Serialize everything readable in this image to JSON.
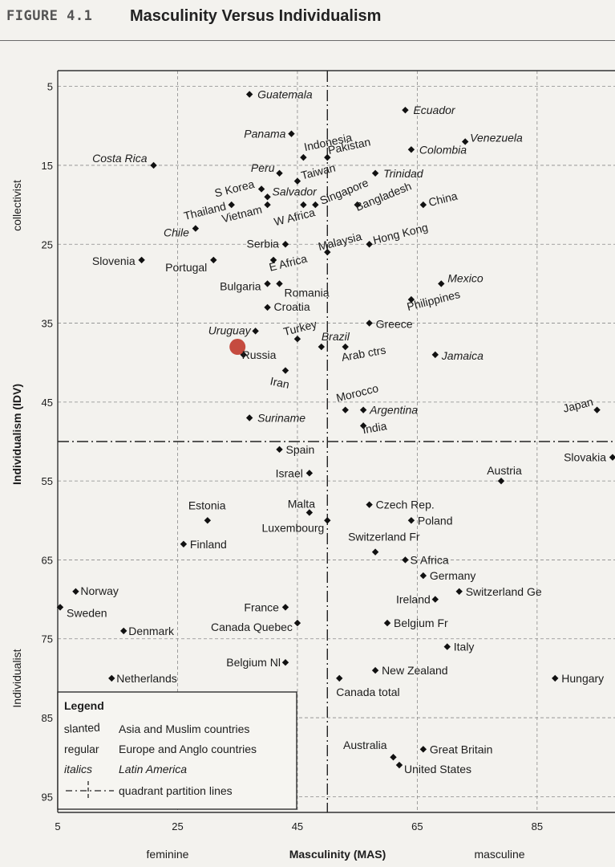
{
  "figure": {
    "label": "FIGURE 4.1",
    "title": "Masculinity Versus Individualism"
  },
  "chart_data": {
    "type": "scatter",
    "title": "Masculinity Versus Individualism",
    "xlabel": "Masculinity (MAS)",
    "ylabel": "Individualism (IDV)",
    "x_left_word": "feminine",
    "x_right_word": "masculine",
    "y_top_word": "collectivist",
    "y_bottom_word": "Individualist",
    "xlim": [
      5,
      98
    ],
    "ylim": [
      3,
      97
    ],
    "y_inverted": true,
    "xticks": [
      5,
      25,
      45,
      65,
      85
    ],
    "yticks": [
      5,
      15,
      25,
      35,
      45,
      55,
      65,
      75,
      85,
      95
    ],
    "grid": true,
    "partition_x": 50,
    "partition_y": 50,
    "points": [
      {
        "name": "Guatemala",
        "x": 37,
        "y": 6,
        "style": "italic"
      },
      {
        "name": "Ecuador",
        "x": 63,
        "y": 8,
        "style": "italic"
      },
      {
        "name": "Panama",
        "x": 44,
        "y": 11,
        "style": "italic"
      },
      {
        "name": "Venezuela",
        "x": 73,
        "y": 12,
        "style": "italic"
      },
      {
        "name": "Indonesia",
        "x": 46,
        "y": 14,
        "style": "slanted"
      },
      {
        "name": "Pakistan",
        "x": 50,
        "y": 14,
        "style": "slanted"
      },
      {
        "name": "Colombia",
        "x": 64,
        "y": 13,
        "style": "italic"
      },
      {
        "name": "Costa Rica",
        "x": 21,
        "y": 15,
        "style": "italic"
      },
      {
        "name": "Peru",
        "x": 42,
        "y": 16,
        "style": "italic"
      },
      {
        "name": "Taiwan",
        "x": 45,
        "y": 17,
        "style": "slanted"
      },
      {
        "name": "Trinidad",
        "x": 58,
        "y": 16,
        "style": "italic"
      },
      {
        "name": "S Korea",
        "x": 39,
        "y": 18,
        "style": "slanted"
      },
      {
        "name": "Salvador",
        "x": 40,
        "y": 19,
        "style": "italic"
      },
      {
        "name": "Singapore",
        "x": 48,
        "y": 20,
        "style": "slanted"
      },
      {
        "name": "Thailand",
        "x": 34,
        "y": 20,
        "style": "slanted"
      },
      {
        "name": "Vietnam",
        "x": 40,
        "y": 20,
        "style": "slanted"
      },
      {
        "name": "W Africa",
        "x": 46,
        "y": 20,
        "style": "slanted"
      },
      {
        "name": "Bangladesh",
        "x": 55,
        "y": 20,
        "style": "slanted"
      },
      {
        "name": "China",
        "x": 66,
        "y": 20,
        "style": "slanted"
      },
      {
        "name": "Chile",
        "x": 28,
        "y": 23,
        "style": "italic"
      },
      {
        "name": "Malaysia",
        "x": 50,
        "y": 26,
        "style": "slanted"
      },
      {
        "name": "Hong Kong",
        "x": 57,
        "y": 25,
        "style": "slanted"
      },
      {
        "name": "Serbia",
        "x": 43,
        "y": 25,
        "style": "regular"
      },
      {
        "name": "Slovenia",
        "x": 19,
        "y": 27,
        "style": "regular"
      },
      {
        "name": "Portugal",
        "x": 31,
        "y": 27,
        "style": "regular"
      },
      {
        "name": "E Africa",
        "x": 41,
        "y": 27,
        "style": "slanted"
      },
      {
        "name": "Mexico",
        "x": 69,
        "y": 30,
        "style": "italic"
      },
      {
        "name": "Bulgaria",
        "x": 40,
        "y": 30,
        "style": "regular"
      },
      {
        "name": "Romania",
        "x": 42,
        "y": 30,
        "style": "regular"
      },
      {
        "name": "Philippines",
        "x": 64,
        "y": 32,
        "style": "slanted"
      },
      {
        "name": "Croatia",
        "x": 40,
        "y": 33,
        "style": "regular"
      },
      {
        "name": "Greece",
        "x": 57,
        "y": 35,
        "style": "regular"
      },
      {
        "name": "Uruguay",
        "x": 38,
        "y": 36,
        "style": "italic"
      },
      {
        "name": "Turkey",
        "x": 45,
        "y": 37,
        "style": "slanted"
      },
      {
        "name": "Brazil",
        "x": 49,
        "y": 38,
        "style": "italic"
      },
      {
        "name": "Arab ctrs",
        "x": 53,
        "y": 38,
        "style": "slanted"
      },
      {
        "name": "Jamaica",
        "x": 68,
        "y": 39,
        "style": "italic"
      },
      {
        "name": "Russia",
        "x": 36,
        "y": 39,
        "style": "regular"
      },
      {
        "name": "Iran",
        "x": 43,
        "y": 41,
        "style": "slanted"
      },
      {
        "name": "Morocco",
        "x": 53,
        "y": 46,
        "style": "slanted"
      },
      {
        "name": "Argentina",
        "x": 56,
        "y": 46,
        "style": "italic"
      },
      {
        "name": "Japan",
        "x": 95,
        "y": 46,
        "style": "slanted"
      },
      {
        "name": "India",
        "x": 56,
        "y": 48,
        "style": "slanted"
      },
      {
        "name": "Suriname",
        "x": 37,
        "y": 47,
        "style": "italic"
      },
      {
        "name": "Spain",
        "x": 42,
        "y": 51,
        "style": "regular"
      },
      {
        "name": "Slovakia",
        "x": 100,
        "y": 52,
        "style": "regular"
      },
      {
        "name": "Israel",
        "x": 47,
        "y": 54,
        "style": "regular"
      },
      {
        "name": "Austria",
        "x": 79,
        "y": 55,
        "style": "regular"
      },
      {
        "name": "Malta",
        "x": 47,
        "y": 59,
        "style": "regular"
      },
      {
        "name": "Czech Rep.",
        "x": 57,
        "y": 58,
        "style": "regular"
      },
      {
        "name": "Estonia",
        "x": 30,
        "y": 60,
        "style": "regular"
      },
      {
        "name": "Luxembourg",
        "x": 50,
        "y": 60,
        "style": "regular"
      },
      {
        "name": "Poland",
        "x": 64,
        "y": 60,
        "style": "regular"
      },
      {
        "name": "Finland",
        "x": 26,
        "y": 63,
        "style": "regular"
      },
      {
        "name": "Switzerland Fr",
        "x": 58,
        "y": 64,
        "style": "regular"
      },
      {
        "name": "S Africa",
        "x": 63,
        "y": 65,
        "style": "regular"
      },
      {
        "name": "Germany",
        "x": 66,
        "y": 67,
        "style": "regular"
      },
      {
        "name": "Norway",
        "x": 8,
        "y": 69,
        "style": "regular"
      },
      {
        "name": "Switzerland Ge",
        "x": 72,
        "y": 69,
        "style": "regular"
      },
      {
        "name": "Ireland",
        "x": 68,
        "y": 70,
        "style": "regular"
      },
      {
        "name": "Sweden",
        "x": 5,
        "y": 71,
        "style": "regular"
      },
      {
        "name": "France",
        "x": 43,
        "y": 71,
        "style": "regular"
      },
      {
        "name": "Canada Quebec",
        "x": 45,
        "y": 73,
        "style": "regular"
      },
      {
        "name": "Belgium Fr",
        "x": 60,
        "y": 73,
        "style": "regular"
      },
      {
        "name": "Denmark",
        "x": 16,
        "y": 74,
        "style": "regular"
      },
      {
        "name": "Italy",
        "x": 70,
        "y": 76,
        "style": "regular"
      },
      {
        "name": "Belgium Nl",
        "x": 43,
        "y": 78,
        "style": "regular"
      },
      {
        "name": "New Zealand",
        "x": 58,
        "y": 79,
        "style": "regular"
      },
      {
        "name": "Netherlands",
        "x": 14,
        "y": 80,
        "style": "regular"
      },
      {
        "name": "Canada total",
        "x": 52,
        "y": 80,
        "style": "regular"
      },
      {
        "name": "Hungary",
        "x": 88,
        "y": 80,
        "style": "regular"
      },
      {
        "name": "Australia",
        "x": 61,
        "y": 90,
        "style": "regular"
      },
      {
        "name": "Great Britain",
        "x": 66,
        "y": 89,
        "style": "regular"
      },
      {
        "name": "United States",
        "x": 62,
        "y": 91,
        "style": "regular"
      }
    ],
    "highlight": {
      "x": 35,
      "y": 38,
      "color": "#c0392b"
    },
    "legend": {
      "title": "Legend",
      "entries": [
        {
          "key": "slanted",
          "desc": "Asia and Muslim countries"
        },
        {
          "key": "regular",
          "desc": "Europe and Anglo countries"
        },
        {
          "key": "italics",
          "desc": "Latin America"
        }
      ],
      "partition_desc": "quadrant partition lines",
      "placement": "bottom-left"
    }
  }
}
